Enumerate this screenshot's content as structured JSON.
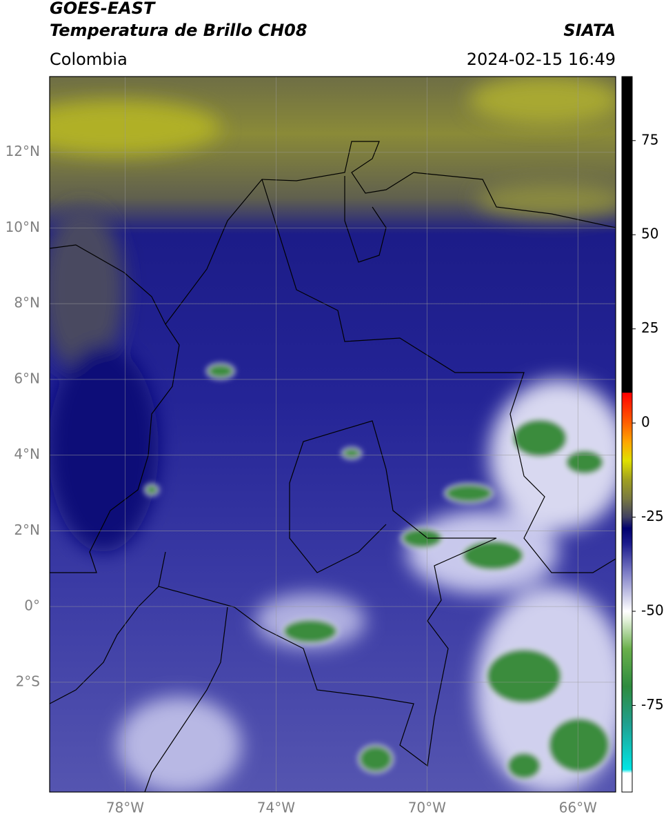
{
  "header": {
    "source": "GOES-EAST",
    "product": "Temperatura de Brillo CH08",
    "institution": "SIATA",
    "region": "Colombia",
    "timestamp": "2024-02-15 16:49"
  },
  "map": {
    "xlim": [
      -80,
      -65
    ],
    "ylim": [
      -4.9,
      14
    ],
    "xticks": [
      {
        "value": -78,
        "label": "78°W"
      },
      {
        "value": -74,
        "label": "74°W"
      },
      {
        "value": -70,
        "label": "70°W"
      },
      {
        "value": -66,
        "label": "66°W"
      }
    ],
    "yticks": [
      {
        "value": 12,
        "label": "12°N"
      },
      {
        "value": 10,
        "label": "10°N"
      },
      {
        "value": 8,
        "label": "8°N"
      },
      {
        "value": 6,
        "label": "6°N"
      },
      {
        "value": 4,
        "label": "4°N"
      },
      {
        "value": 2,
        "label": "2°N"
      },
      {
        "value": 0,
        "label": "0°"
      },
      {
        "value": -2,
        "label": "2°S"
      }
    ],
    "grid": true
  },
  "colorbar": {
    "clim": [
      -98,
      92
    ],
    "ticks": [
      75,
      50,
      25,
      0,
      -25,
      -50,
      -75
    ],
    "colorscale": [
      {
        "value": -98,
        "color": "#ffffff"
      },
      {
        "value": -93,
        "color": "#ffffff"
      },
      {
        "value": -92,
        "color": "#00e5e5"
      },
      {
        "value": -80,
        "color": "#20a090"
      },
      {
        "value": -70,
        "color": "#2e8b3e"
      },
      {
        "value": -60,
        "color": "#6ab04c"
      },
      {
        "value": -52,
        "color": "#e8f4e0"
      },
      {
        "value": -50,
        "color": "#ffffff"
      },
      {
        "value": -40,
        "color": "#8080c8"
      },
      {
        "value": -32,
        "color": "#1a1a8c"
      },
      {
        "value": -28,
        "color": "#00006e"
      },
      {
        "value": -25,
        "color": "#404060"
      },
      {
        "value": -20,
        "color": "#7a7a40"
      },
      {
        "value": -15,
        "color": "#a0a020"
      },
      {
        "value": -10,
        "color": "#e0e000"
      },
      {
        "value": -5,
        "color": "#ffa500"
      },
      {
        "value": 0,
        "color": "#ff6000"
      },
      {
        "value": 8,
        "color": "#ff0000"
      },
      {
        "value": 8.1,
        "color": "#000000"
      },
      {
        "value": 92,
        "color": "#000000"
      }
    ]
  }
}
